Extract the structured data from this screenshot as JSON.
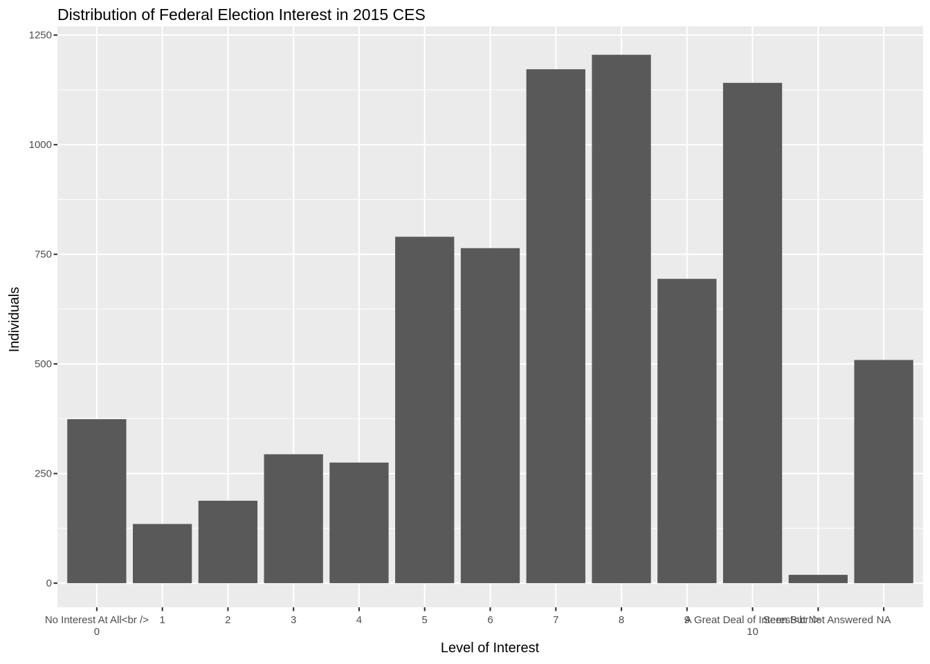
{
  "chart_data": {
    "type": "bar",
    "title": "Distribution of Federal Election Interest in 2015 CES",
    "xlabel": "Level of Interest",
    "ylabel": "Individuals",
    "categories": [
      "No Interest At All<br /> 0",
      "1",
      "2",
      "3",
      "4",
      "5",
      "6",
      "7",
      "8",
      "9",
      "A Great Deal of Interest<br /> 10",
      "Seen But Not Answered",
      "NA"
    ],
    "tick_label_lines": [
      [
        "No Interest At All<br />",
        "0"
      ],
      [
        "1"
      ],
      [
        "2"
      ],
      [
        "3"
      ],
      [
        "4"
      ],
      [
        "5"
      ],
      [
        "6"
      ],
      [
        "7"
      ],
      [
        "8"
      ],
      [
        "9"
      ],
      [
        "A Great Deal of Interest<br />",
        "10"
      ],
      [
        "Seen But Not Answered"
      ],
      [
        "NA"
      ]
    ],
    "values": [
      374,
      135,
      188,
      294,
      275,
      790,
      764,
      1172,
      1205,
      694,
      1141,
      19,
      509
    ],
    "ylim": [
      -55,
      1270
    ],
    "yticks": [
      0,
      250,
      500,
      750,
      1000,
      1250
    ],
    "ytick_labels": [
      "0",
      "250",
      "500",
      "750",
      "1000",
      "1250"
    ],
    "grid": true,
    "legend": "none",
    "colors": {
      "bar": "#595959",
      "panel": "#ebebeb",
      "grid": "#ffffff",
      "tick_text": "#4d4d4d"
    }
  }
}
